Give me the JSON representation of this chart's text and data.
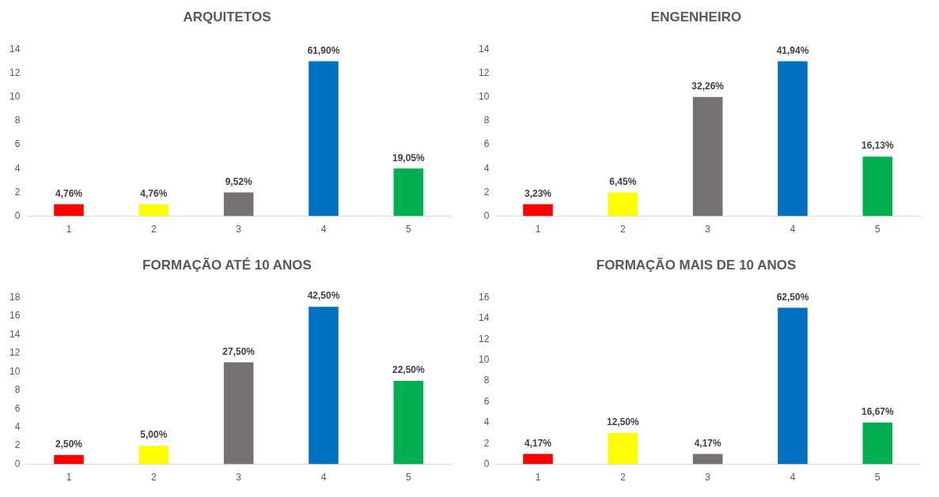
{
  "chart_data": [
    {
      "type": "bar",
      "title": "ARQUITETOS",
      "categories": [
        "1",
        "2",
        "3",
        "4",
        "5"
      ],
      "values": [
        1,
        1,
        2,
        13,
        4
      ],
      "colors": [
        "#ff0000",
        "#ffff00",
        "#767171",
        "#0070c0",
        "#00b050"
      ],
      "annotations": [
        {
          "text": "4,76%",
          "x": "1",
          "y": 1
        },
        {
          "text": "4,76%",
          "x": "2",
          "y": 1
        },
        {
          "text": "9,52%",
          "x": "3",
          "y": 2
        },
        {
          "text": "61,90%",
          "x": "4",
          "y": 13
        },
        {
          "text": "19,05%",
          "x": "5",
          "y": 4
        }
      ],
      "ylim": [
        0,
        14
      ],
      "yticks": [
        0,
        2,
        4,
        6,
        8,
        10,
        12,
        14
      ],
      "grid": false,
      "legend": false
    },
    {
      "type": "bar",
      "title": "ENGENHEIRO",
      "categories": [
        "1",
        "2",
        "3",
        "4",
        "5"
      ],
      "values": [
        1,
        2,
        10,
        13,
        5
      ],
      "colors": [
        "#ff0000",
        "#ffff00",
        "#767171",
        "#0070c0",
        "#00b050"
      ],
      "annotations": [
        {
          "text": "3,23%",
          "x": "1",
          "y": 1
        },
        {
          "text": "6,45%",
          "x": "2",
          "y": 2
        },
        {
          "text": "32,26%",
          "x": "3",
          "y": 10
        },
        {
          "text": "41,94%",
          "x": "4",
          "y": 13
        },
        {
          "text": "16,13%",
          "x": "5",
          "y": 5
        }
      ],
      "ylim": [
        0,
        14
      ],
      "yticks": [
        0,
        2,
        4,
        6,
        8,
        10,
        12,
        14
      ],
      "grid": false,
      "legend": false
    },
    {
      "type": "bar",
      "title": "FORMAÇÃO ATÉ 10 ANOS",
      "categories": [
        "1",
        "2",
        "3",
        "4",
        "5"
      ],
      "values": [
        1,
        2,
        11,
        17,
        9
      ],
      "colors": [
        "#ff0000",
        "#ffff00",
        "#767171",
        "#0070c0",
        "#00b050"
      ],
      "annotations": [
        {
          "text": "2,50%",
          "x": "1",
          "y": 1
        },
        {
          "text": "5,00%",
          "x": "2",
          "y": 2
        },
        {
          "text": "27,50%",
          "x": "3",
          "y": 11
        },
        {
          "text": "42,50%",
          "x": "4",
          "y": 17
        },
        {
          "text": "22,50%",
          "x": "5",
          "y": 9
        }
      ],
      "ylim": [
        0,
        18
      ],
      "yticks": [
        0,
        2,
        4,
        6,
        8,
        10,
        12,
        14,
        16,
        18
      ],
      "grid": false,
      "legend": false
    },
    {
      "type": "bar",
      "title": "FORMAÇÃO MAIS DE 10 ANOS",
      "categories": [
        "1",
        "2",
        "3",
        "4",
        "5"
      ],
      "values": [
        1,
        3,
        1,
        15,
        4
      ],
      "colors": [
        "#ff0000",
        "#ffff00",
        "#767171",
        "#0070c0",
        "#00b050"
      ],
      "annotations": [
        {
          "text": "4,17%",
          "x": "1",
          "y": 1
        },
        {
          "text": "12,50%",
          "x": "2",
          "y": 3
        },
        {
          "text": "4,17%",
          "x": "3",
          "y": 1
        },
        {
          "text": "62,50%",
          "x": "4",
          "y": 15
        },
        {
          "text": "16,67%",
          "x": "5",
          "y": 4
        }
      ],
      "ylim": [
        0,
        16
      ],
      "yticks": [
        0,
        2,
        4,
        6,
        8,
        10,
        12,
        14,
        16
      ],
      "grid": false,
      "legend": false
    }
  ]
}
